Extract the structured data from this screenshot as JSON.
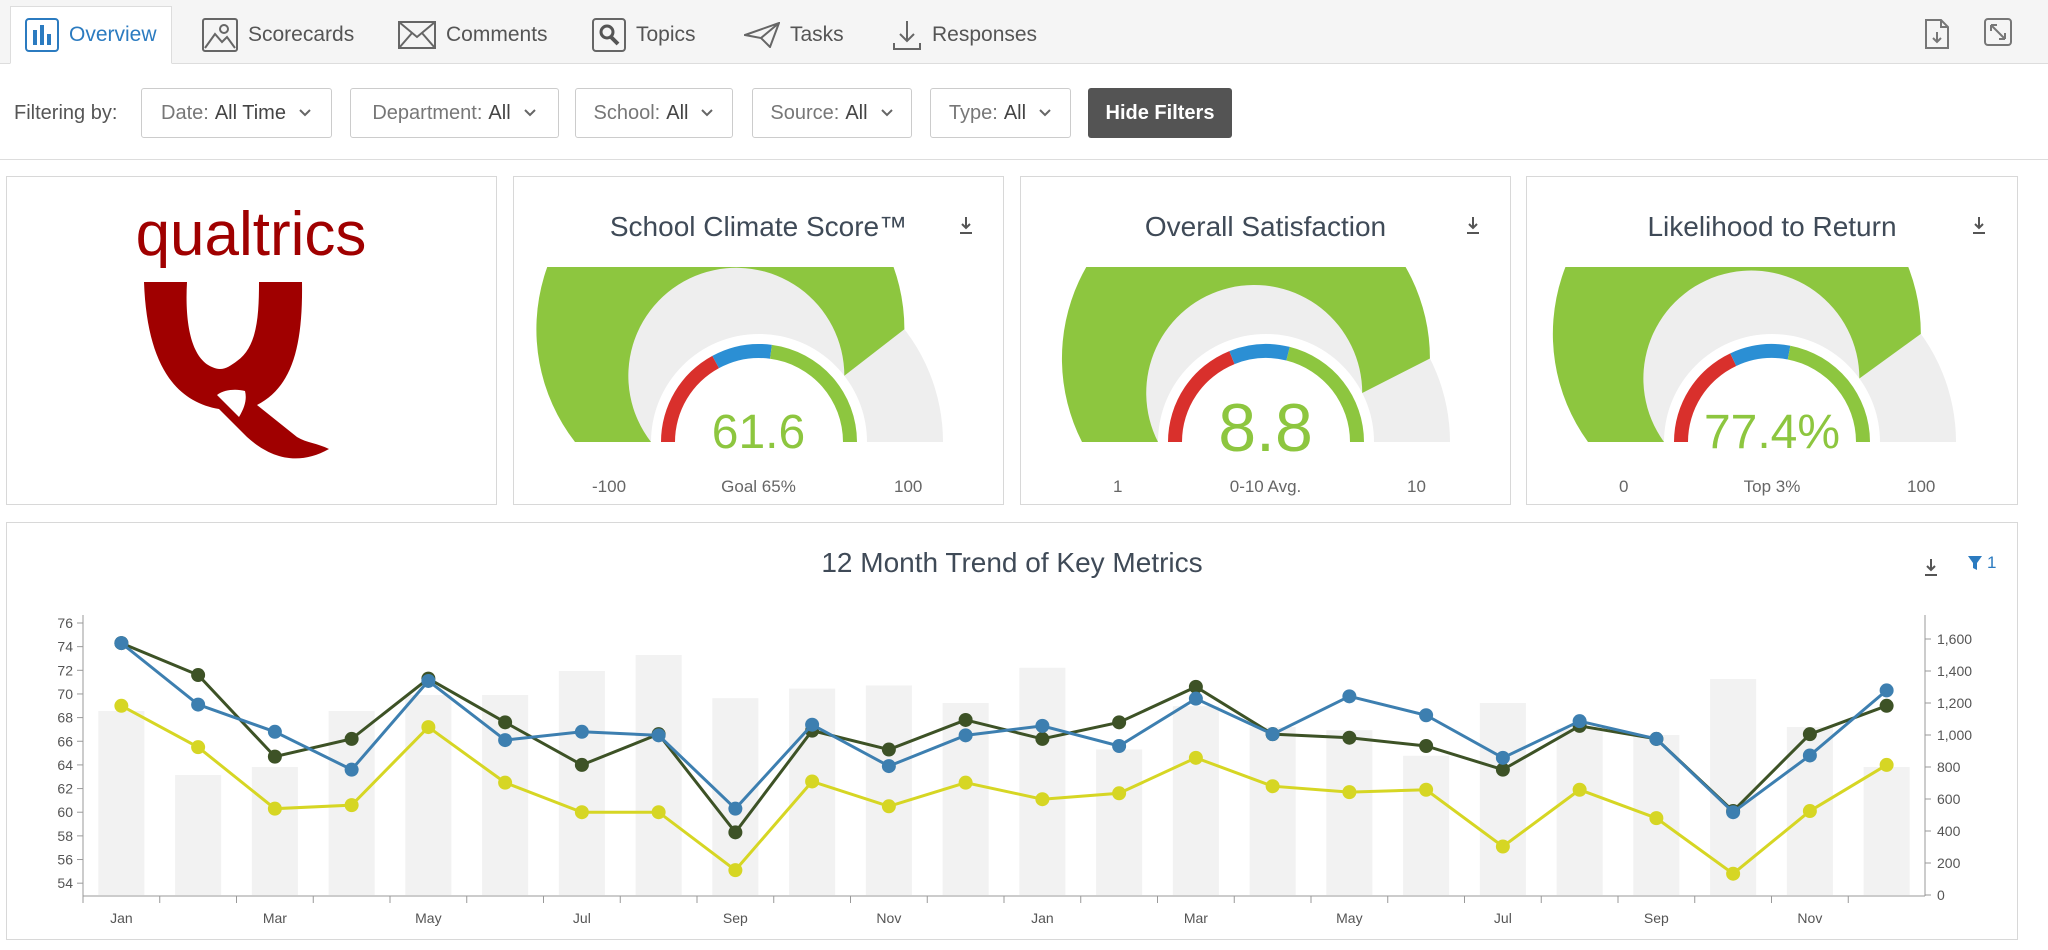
{
  "tabs": [
    {
      "label": "Overview",
      "icon": "bar-chart-icon",
      "active": true
    },
    {
      "label": "Scorecards",
      "icon": "image-icon",
      "active": false
    },
    {
      "label": "Comments",
      "icon": "envelope-icon",
      "active": false
    },
    {
      "label": "Topics",
      "icon": "search-icon",
      "active": false
    },
    {
      "label": "Tasks",
      "icon": "paper-plane-icon",
      "active": false
    },
    {
      "label": "Responses",
      "icon": "download-icon",
      "active": false
    }
  ],
  "filters": {
    "label": "Filtering by:",
    "items": [
      {
        "name": "Date:",
        "value": "All Time"
      },
      {
        "name": "Department:",
        "value": "All"
      },
      {
        "name": "School:",
        "value": "All"
      },
      {
        "name": "Source:",
        "value": "All"
      },
      {
        "name": "Type:",
        "value": "All"
      }
    ],
    "hide_label": "Hide Filters"
  },
  "logo": {
    "text": "qualtrics",
    "color": "#a00000"
  },
  "gauges": [
    {
      "title": "School Climate Score™",
      "value": "61.6",
      "min": "-100",
      "mid": "Goal 65%",
      "max": "100",
      "fill_fraction": 0.79,
      "target_fraction": 0.38
    },
    {
      "title": "Overall Satisfaction",
      "value": "8.8",
      "min": "1",
      "mid": "0-10 Avg.",
      "max": "10",
      "fill_fraction": 0.85,
      "target_fraction": 0.42
    },
    {
      "title": "Likelihood to Return",
      "value": "77.4%",
      "min": "0",
      "mid": "Top 3%",
      "max": "100",
      "fill_fraction": 0.8,
      "target_fraction": 0.4
    }
  ],
  "colors": {
    "green": "#8dc63f",
    "red": "#d9302c",
    "blue": "#2b8fd4",
    "gray": "#eeeeee",
    "accent": "#2b7bc0"
  },
  "trend": {
    "title": "12 Month Trend of Key Metrics",
    "filter_count": "1"
  },
  "chart_data": {
    "type": "line",
    "title": "12 Month Trend of Key Metrics",
    "x": [
      "Jan",
      "",
      "Mar",
      "",
      "May",
      "",
      "Jul",
      "",
      "Sep",
      "",
      "Nov",
      "",
      "Jan",
      "",
      "Mar",
      "",
      "May",
      "",
      "Jul",
      "",
      "Sep",
      "",
      "Nov",
      ""
    ],
    "x_tick_labels": [
      "Jan",
      "Mar",
      "May",
      "Jul",
      "Sep",
      "Nov",
      "Jan",
      "Mar",
      "May",
      "Jul",
      "Sep",
      "Nov"
    ],
    "ylim_left": [
      53,
      76
    ],
    "y_ticks_left": [
      54,
      56,
      58,
      60,
      62,
      64,
      66,
      68,
      70,
      72,
      74,
      76
    ],
    "ylim_right": [
      0,
      1700
    ],
    "y_ticks_right": [
      "0",
      "200",
      "400",
      "600",
      "800",
      "1,000",
      "1,200",
      "1,400",
      "1,600"
    ],
    "bars": [
      1150,
      750,
      800,
      1150,
      1250,
      1250,
      1400,
      1500,
      1230,
      1290,
      1310,
      1200,
      1420,
      910,
      1180,
      1050,
      1030,
      870,
      1200,
      1040,
      1000,
      1350,
      1050,
      800
    ],
    "series": [
      {
        "color": "#3d5226",
        "values": [
          74.3,
          71.6,
          64.7,
          66.2,
          71.3,
          67.6,
          64.0,
          66.6,
          58.3,
          66.9,
          65.3,
          67.8,
          66.2,
          67.6,
          70.6,
          66.6,
          66.3,
          65.6,
          63.6,
          67.3,
          66.2,
          60.1,
          66.6,
          69.0
        ]
      },
      {
        "color": "#3d7fb0",
        "values": [
          74.3,
          69.1,
          66.8,
          63.6,
          71.1,
          66.1,
          66.8,
          66.5,
          60.3,
          67.4,
          63.9,
          66.5,
          67.3,
          65.6,
          69.6,
          66.6,
          69.8,
          68.2,
          64.6,
          67.7,
          66.2,
          60.0,
          64.8,
          70.3
        ]
      },
      {
        "color": "#d6d624",
        "values": [
          69.0,
          65.5,
          60.3,
          60.6,
          67.2,
          62.5,
          60.0,
          60.0,
          55.1,
          62.6,
          60.5,
          62.5,
          61.1,
          61.6,
          64.6,
          62.2,
          61.7,
          61.9,
          57.1,
          61.9,
          59.5,
          54.8,
          60.1,
          64.0
        ]
      }
    ],
    "grid": false,
    "legend": "none"
  }
}
